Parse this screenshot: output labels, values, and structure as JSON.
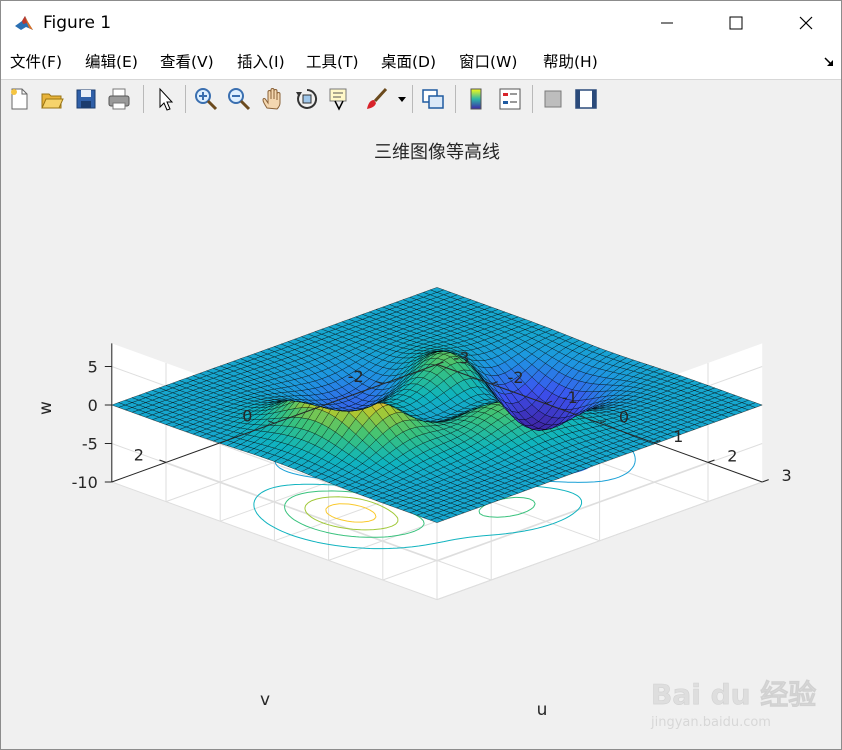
{
  "window": {
    "title": "Figure 1",
    "minimize_icon": "minimize-icon",
    "maximize_icon": "maximize-icon",
    "close_icon": "close-icon"
  },
  "menu": {
    "items": [
      "文件(F)",
      "编辑(E)",
      "查看(V)",
      "插入(I)",
      "工具(T)",
      "桌面(D)",
      "窗口(W)",
      "帮助(H)"
    ],
    "dock_icon": "dock-arrow-icon"
  },
  "toolbar": {
    "icons": [
      "new-figure-icon",
      "open-file-icon",
      "save-icon",
      "print-icon",
      "select-arrow-icon",
      "zoom-in-icon",
      "zoom-out-icon",
      "pan-hand-icon",
      "rotate-3d-icon",
      "data-cursor-icon",
      "brush-icon",
      "brush-dropdown-icon",
      "link-plot-icon",
      "colorbar-icon",
      "legend-icon",
      "hide-plot-tools-icon",
      "show-plot-tools-icon"
    ]
  },
  "colors": {
    "colormap": "parula",
    "edge_color": "#000000",
    "axes_background": "#ffffff",
    "figure_background": "#f0f0f0",
    "grid_color": "#dedede"
  },
  "watermark": {
    "brand": "Bai du 经验",
    "url": "jingyan.baidu.com"
  },
  "chart_data": {
    "type": "surface",
    "function": "peaks",
    "title": "三维图像等高线",
    "xlabel": "u",
    "ylabel": "v",
    "zlabel": "w",
    "xlim": [
      -3,
      3
    ],
    "ylim": [
      -3,
      3
    ],
    "zlim": [
      -10,
      8
    ],
    "xticks": [
      "-3",
      "-2",
      "-1",
      "0",
      "1",
      "2",
      "3"
    ],
    "yticks": [
      "-2",
      "0",
      "2"
    ],
    "zticks": [
      "-10",
      "-5",
      "0",
      "5"
    ],
    "surface_offset": 0,
    "contour_plane_z": -10,
    "contour_levels": [
      -6.5,
      -4.5,
      -2.5,
      -0.5,
      1.0,
      3.0,
      5.0,
      7.0
    ],
    "grid_points": 49,
    "extrema": {
      "max": 8.1,
      "min": -6.5
    },
    "grid": true,
    "box": false
  }
}
